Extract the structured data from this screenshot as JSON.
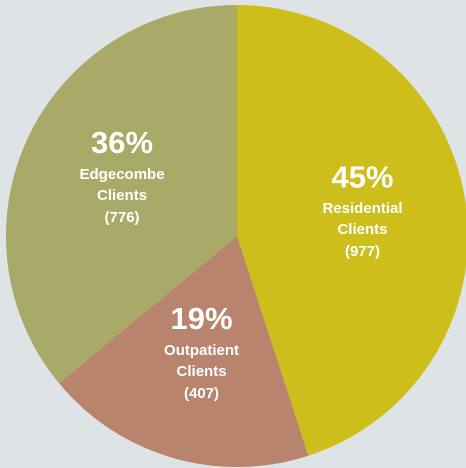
{
  "chart_data": {
    "type": "pie",
    "categories": [
      "Residential Clients",
      "Outpatient Clients",
      "Edgecombe Clients"
    ],
    "values": [
      45,
      19,
      36
    ],
    "value_labels": [
      "45%",
      "19%",
      "36%"
    ],
    "counts": [
      977,
      407,
      776
    ],
    "count_labels": [
      "(977)",
      "(407)",
      "(776)"
    ],
    "colors": [
      "#cdbe1b",
      "#b8846e",
      "#a9aa67"
    ]
  }
}
